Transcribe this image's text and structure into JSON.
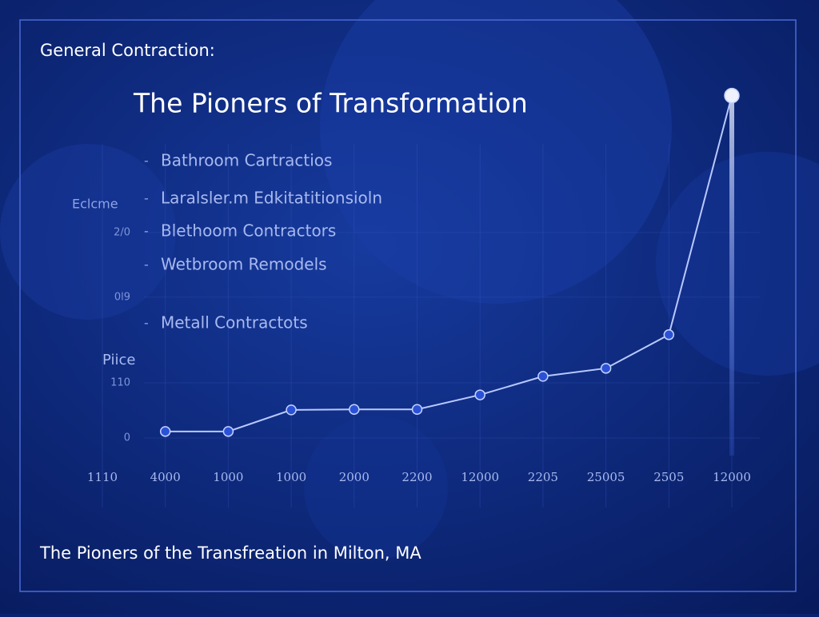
{
  "chart_data": {
    "type": "line",
    "header": "General Contraction:",
    "title": "The Pioners of Transformation",
    "list_items": [
      "Bathroom Cartractios",
      "Laralsler.m Edkitatitionsioln",
      "Blethoom Contractors",
      "Wetbroom Remodels",
      "Metall Contractots"
    ],
    "ylabel_top": "Eclcme",
    "ylabel": "Piice",
    "footer": "The Pioners of the Transfreation in Milton, MA",
    "categories": [
      "1110",
      "4000",
      "1000",
      "1000",
      "2000",
      "2200",
      "12000",
      "2205",
      "25005",
      "2505",
      "12000"
    ],
    "series": [
      {
        "name": "Price",
        "color": "#b9c9ff",
        "values": [
          null,
          13,
          13,
          56,
          57,
          57,
          86,
          123,
          139,
          206,
          683
        ]
      }
    ],
    "ylim": [
      0,
      700
    ],
    "yticks": [
      0,
      110,
      {
        "value": 281,
        "label": "0l9"
      },
      {
        "value": 410,
        "label": "2/0"
      }
    ],
    "grid": true
  }
}
